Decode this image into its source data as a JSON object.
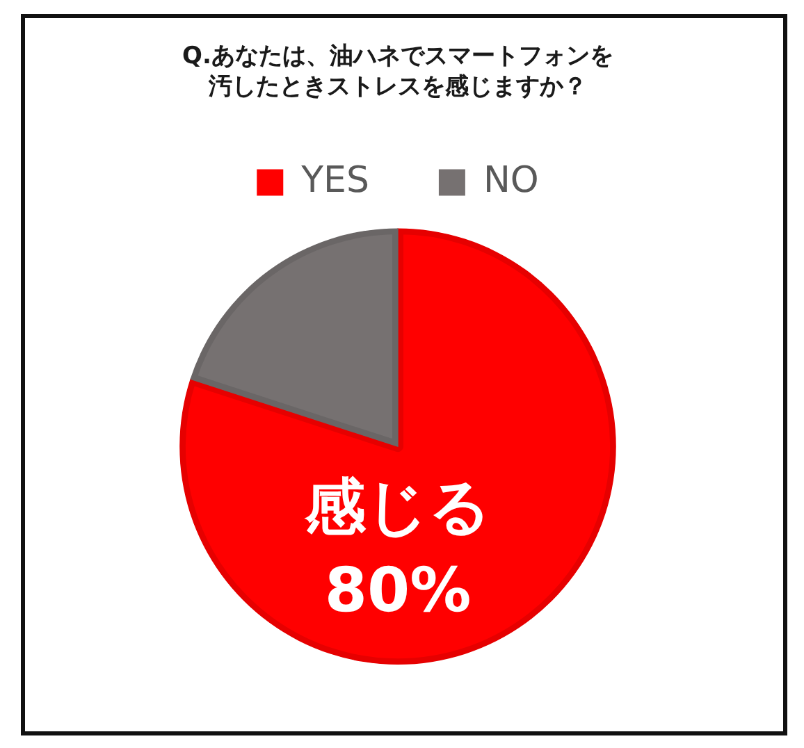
{
  "chart_data": {
    "type": "pie",
    "title": "Q.あなたは、油ハネでスマートフォンを汚したときストレスを感じますか？",
    "categories": [
      "YES",
      "NO"
    ],
    "values": [
      80,
      20
    ],
    "colors": [
      "#ff0000",
      "#767171"
    ],
    "value_labels": [
      "感じる\n80%",
      null
    ],
    "legend": "top"
  }
}
